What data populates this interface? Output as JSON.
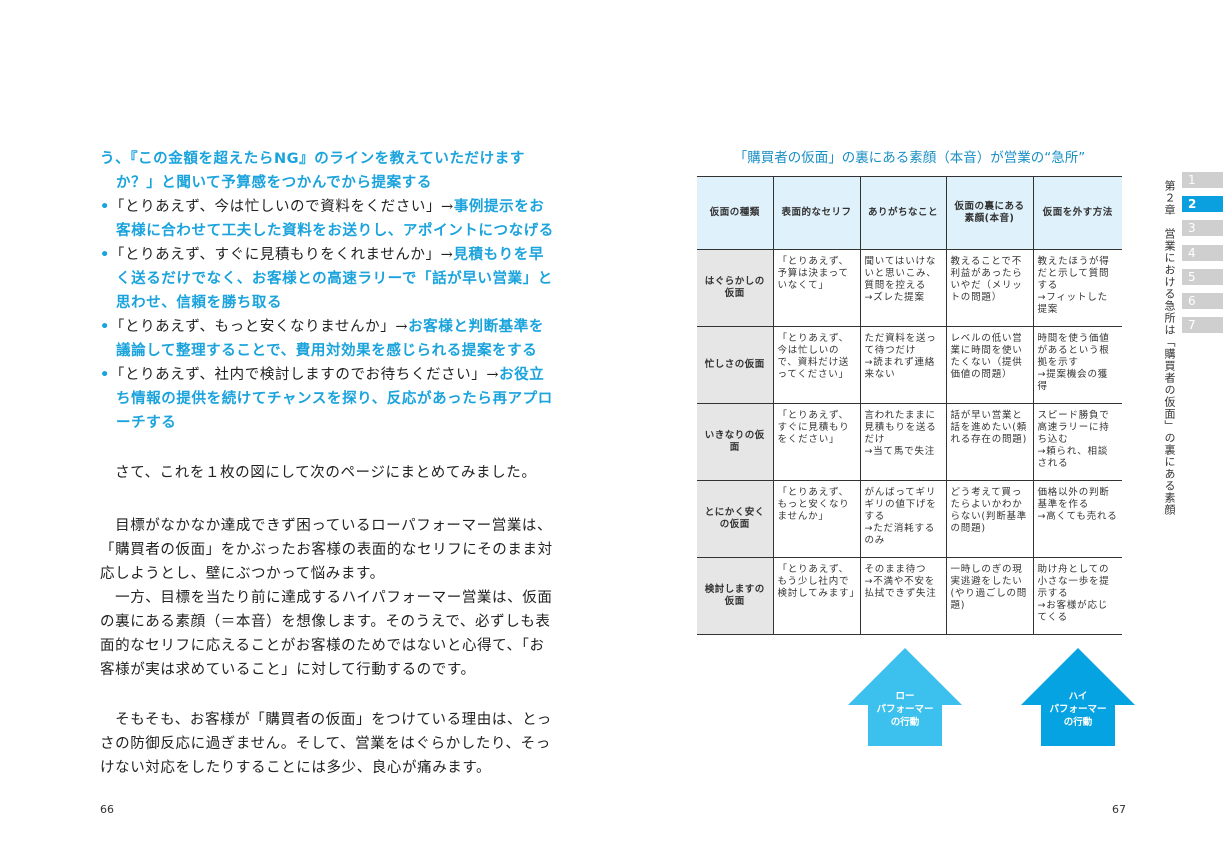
{
  "left_page": {
    "lines": [
      [
        {
          "t": "う、『この金額を超えたらNG』のラインを教えていただけます",
          "b": true
        }
      ],
      [
        {
          "t": "か？」と聞いて予算感をつかんでから提案する",
          "b": true
        }
      ],
      [
        {
          "t": "•",
          "b": true
        },
        {
          "t": "「とりあえず、今は忙しいので資料をください」→",
          "b": false
        },
        {
          "t": "事例提示をお",
          "b": true
        }
      ],
      [
        {
          "t": "客様に合わせて工夫した資料をお送りし、アポイントにつなげる",
          "b": true
        }
      ],
      [
        {
          "t": "•",
          "b": true
        },
        {
          "t": "「とりあえず、すぐに見積もりをくれませんか」→",
          "b": false
        },
        {
          "t": "見積もりを早",
          "b": true
        }
      ],
      [
        {
          "t": "く送るだけでなく、お客様との高速ラリーで「話が早い営業」と",
          "b": true
        }
      ],
      [
        {
          "t": "思わせ、信頼を勝ち取る",
          "b": true
        }
      ],
      [
        {
          "t": "•",
          "b": true
        },
        {
          "t": "「とりあえず、もっと安くなりませんか」→",
          "b": false
        },
        {
          "t": "お客様と判断基準を",
          "b": true
        }
      ],
      [
        {
          "t": "議論して整理することで、費用対効果を感じられる提案をする",
          "b": true
        }
      ],
      [
        {
          "t": "•",
          "b": true
        },
        {
          "t": "「とりあえず、社内で検討しますのでお待ちください」→",
          "b": false
        },
        {
          "t": "お役立",
          "b": true
        }
      ],
      [
        {
          "t": "ち情報の提供を続けてチャンスを探り、反応があったら再アプロ",
          "b": true
        }
      ],
      [
        {
          "t": "ーチする",
          "b": true
        }
      ],
      [
        {
          "t": "　さて、これを１枚の図にして次のページにまとめてみました。",
          "b": false
        }
      ],
      [
        {
          "t": "　目標がなかなか達成できず困っているローパフォーマー営業は、",
          "b": false
        }
      ],
      [
        {
          "t": "「購買者の仮面」をかぶったお客様の表面的なセリフにそのまま対",
          "b": false
        }
      ],
      [
        {
          "t": "応しようとし、壁にぶつかって悩みます。",
          "b": false
        }
      ],
      [
        {
          "t": "　一方、目標を当たり前に達成するハイパフォーマー営業は、仮面",
          "b": false
        }
      ],
      [
        {
          "t": "の裏にある素顔（＝本音）を想像します。そのうえで、必ずしも表",
          "b": false
        }
      ],
      [
        {
          "t": "面的なセリフに応えることがお客様のためではないと心得て、「お",
          "b": false
        }
      ],
      [
        {
          "t": "客様が実は求めていること」に対して行動するのです。",
          "b": false
        }
      ],
      [
        {
          "t": "　そもそも、お客様が「購買者の仮面」をつけている理由は、とっ",
          "b": false
        }
      ],
      [
        {
          "t": "さの防御反応に過ぎません。そして、営業をはぐらかしたり、そっ",
          "b": false
        }
      ],
      [
        {
          "t": "けない対応をしたりすることには多少、良心が痛みます。",
          "b": false
        }
      ]
    ],
    "page_number": "66"
  },
  "right_page": {
    "table_title": "「購買者の仮面」の裏にある素顔（本音）が営業の“急所”",
    "headers": [
      "仮面の種類",
      "表面的なセリフ",
      "ありがちなこと",
      "仮面の裏にある素顔(本音)",
      "仮面を外す方法"
    ],
    "rows": [
      [
        "はぐらかしの仮面",
        "「とりあえず、予算は決まっていなくて」",
        "聞いてはいけないと思いこみ、質問を控える\n→ズレた提案",
        "教えることで不利益があったらいやだ（メリットの問題）",
        "教えたほうが得だと示して質問する\n→フィットした提案"
      ],
      [
        "忙しさの仮面",
        "「とりあえず、今は忙しいので、資料だけ送ってください」",
        "ただ資料を送って待つだけ\n→読まれず連絡来ない",
        "レベルの低い営業に時間を使いたくない（提供価値の問題）",
        "時間を使う価値があるという根拠を示す\n→提案機会の獲得"
      ],
      [
        "いきなりの仮面",
        "「とりあえず、すぐに見積もりをください」",
        "言われたままに見積もりを送るだけ\n→当て馬で失注",
        "話が早い営業と話を進めたい(頼れる存在の問題)",
        "スピード勝負で高速ラリーに持ち込む\n→頼られ、相談される"
      ],
      [
        "とにかく安くの仮面",
        "「とりあえず、もっと安くなりませんか」",
        "がんばってギリギリの値下げをする\n→ただ消耗するのみ",
        "どう考えて買ったらよいかわからない(判断基準の問題)",
        "価格以外の判断基準を作る\n→高くても売れる"
      ],
      [
        "検討しますの仮面",
        "「とりあえず、もう少し社内で検討してみます」",
        "そのまま待つ\n→不満や不安を払拭できず失注",
        "一時しのぎの現実逃避をしたい(やり過ごしの問題)",
        "助け舟としての小さな一歩を提示する\n→お客様が応じてくる"
      ]
    ],
    "arrows": [
      {
        "label": "ロー\nパフォーマー\nの行動",
        "color": "#3cc0ee"
      },
      {
        "label": "ハイ\nパフォーマー\nの行動",
        "color": "#06a3e2"
      }
    ],
    "chapter_tabs": [
      "1",
      "2",
      "3",
      "4",
      "5",
      "6",
      "7"
    ],
    "active_chapter": "2",
    "chapter_label": "第２章　営業における急所は「購買者の仮面」の裏にある素顔",
    "page_number": "67"
  }
}
